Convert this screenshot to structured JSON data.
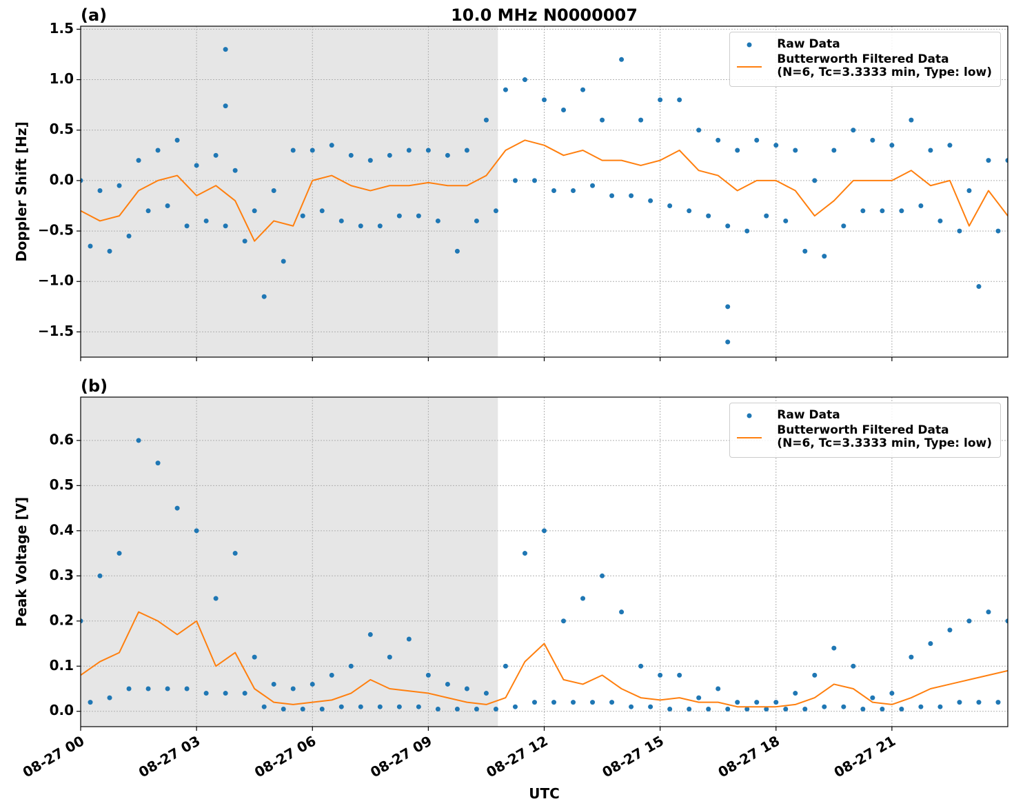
{
  "chart_data": [
    {
      "type": "scatter-line",
      "title": "10.0 MHz N0000007",
      "panel_label": "(a)",
      "ylabel": "Doppler Shift [Hz]",
      "xlim": [
        0,
        24
      ],
      "xticks": [
        0,
        3,
        6,
        9,
        12,
        15,
        18,
        21
      ],
      "ylim": [
        -1.75,
        1.53
      ],
      "yticks": [
        {
          "value": -1.5,
          "label": "−1.5"
        },
        {
          "value": -1.0,
          "label": "−1.0"
        },
        {
          "value": -0.5,
          "label": "−0.5"
        },
        {
          "value": 0,
          "label": "0.0"
        },
        0.5,
        {
          "value": 1.0,
          "label": "1.0"
        },
        1.5
      ],
      "grid": true,
      "legend": "upper right",
      "shaded_span": [
        0,
        10.8
      ],
      "series": [
        {
          "name": "Raw Data",
          "kind": "scatter",
          "color": "#1f77b4",
          "x": [
            0,
            0.25,
            0.5,
            0.75,
            1,
            1.25,
            1.5,
            1.75,
            2,
            2.25,
            2.5,
            2.75,
            3,
            3.25,
            3.5,
            3.75,
            4,
            4.25,
            4.5,
            4.75,
            5,
            5.25,
            5.5,
            5.75,
            6,
            6.25,
            6.5,
            6.75,
            7,
            7.25,
            7.5,
            7.75,
            8,
            8.25,
            8.5,
            8.75,
            9,
            9.25,
            9.5,
            9.75,
            10,
            10.25,
            10.5,
            10.75,
            11,
            11.25,
            11.5,
            11.75,
            12,
            12.25,
            12.5,
            12.75,
            13,
            13.25,
            13.5,
            13.75,
            14,
            14.25,
            14.5,
            14.75,
            15,
            15.25,
            15.5,
            15.75,
            16,
            16.25,
            16.5,
            16.75,
            17,
            17.25,
            17.5,
            17.75,
            18,
            18.25,
            18.5,
            18.75,
            19,
            19.25,
            19.5,
            19.75,
            20,
            20.25,
            20.5,
            20.75,
            21,
            21.25,
            21.5,
            21.75,
            22,
            22.25,
            22.5,
            22.75,
            23,
            23.25,
            23.5,
            23.75,
            24,
            3.75,
            3.75,
            16.75,
            16.75
          ],
          "values": [
            0.0,
            -0.65,
            -0.1,
            -0.7,
            -0.05,
            -0.55,
            0.2,
            -0.3,
            0.3,
            -0.25,
            0.4,
            -0.45,
            0.15,
            -0.4,
            0.25,
            -0.45,
            0.1,
            -0.6,
            -0.3,
            -1.15,
            -0.1,
            -0.8,
            0.3,
            -0.35,
            0.3,
            -0.3,
            0.35,
            -0.4,
            0.25,
            -0.45,
            0.2,
            -0.45,
            0.25,
            -0.35,
            0.3,
            -0.35,
            0.3,
            -0.4,
            0.25,
            -0.7,
            0.3,
            -0.4,
            0.6,
            -0.3,
            0.9,
            0.0,
            1.0,
            0.0,
            0.8,
            -0.1,
            0.7,
            -0.1,
            0.9,
            -0.05,
            0.6,
            -0.15,
            1.2,
            -0.15,
            0.6,
            -0.2,
            0.8,
            -0.25,
            0.8,
            -0.3,
            0.5,
            -0.35,
            0.4,
            -0.45,
            0.3,
            -0.5,
            0.4,
            -0.35,
            0.35,
            -0.4,
            0.3,
            -0.7,
            0.0,
            -0.75,
            0.3,
            -0.45,
            0.5,
            -0.3,
            0.4,
            -0.3,
            0.35,
            -0.3,
            0.6,
            -0.25,
            0.3,
            -0.4,
            0.35,
            -0.5,
            -0.1,
            -1.05,
            0.2,
            -0.5,
            0.2,
            1.3,
            0.74,
            -1.6,
            -1.25
          ]
        },
        {
          "name": "Butterworth Filtered Data\n(N=6, Tc=3.3333 min, Type: low)",
          "kind": "line",
          "color": "#ff7f0e",
          "x": [
            0,
            0.5,
            1,
            1.5,
            2,
            2.5,
            3,
            3.5,
            4,
            4.5,
            5,
            5.5,
            6,
            6.5,
            7,
            7.5,
            8,
            8.5,
            9,
            9.5,
            10,
            10.5,
            11,
            11.5,
            12,
            12.5,
            13,
            13.5,
            14,
            14.5,
            15,
            15.5,
            16,
            16.5,
            17,
            17.5,
            18,
            18.5,
            19,
            19.5,
            20,
            20.5,
            21,
            21.5,
            22,
            22.5,
            23,
            23.5,
            24
          ],
          "values": [
            -0.3,
            -0.4,
            -0.35,
            -0.1,
            0.0,
            0.05,
            -0.15,
            -0.05,
            -0.2,
            -0.6,
            -0.4,
            -0.45,
            0.0,
            0.05,
            -0.05,
            -0.1,
            -0.05,
            -0.05,
            -0.02,
            -0.05,
            -0.05,
            0.05,
            0.3,
            0.4,
            0.35,
            0.25,
            0.3,
            0.2,
            0.2,
            0.15,
            0.2,
            0.3,
            0.1,
            0.05,
            -0.1,
            0.0,
            0.0,
            -0.1,
            -0.35,
            -0.2,
            0.0,
            0.0,
            0.0,
            0.1,
            -0.05,
            0.0,
            -0.45,
            -0.1,
            -0.35
          ]
        }
      ]
    },
    {
      "type": "scatter-line",
      "panel_label": "(b)",
      "ylabel": "Peak Voltage [V]",
      "xlabel": "UTC",
      "xlim": [
        0,
        24
      ],
      "xticks": [
        {
          "value": 0,
          "label": "08-27 00"
        },
        {
          "value": 3,
          "label": "08-27 03"
        },
        {
          "value": 6,
          "label": "08-27 06"
        },
        {
          "value": 9,
          "label": "08-27 09"
        },
        {
          "value": 12,
          "label": "08-27 12"
        },
        {
          "value": 15,
          "label": "08-27 15"
        },
        {
          "value": 18,
          "label": "08-27 18"
        },
        {
          "value": 21,
          "label": "08-27 21"
        }
      ],
      "ylim": [
        -0.034,
        0.696
      ],
      "yticks": [
        {
          "value": 0,
          "label": "0.0"
        },
        0.1,
        0.2,
        0.3,
        0.4,
        0.5,
        0.6
      ],
      "grid": true,
      "legend": "upper right",
      "shaded_span": [
        0,
        10.8
      ],
      "series": [
        {
          "name": "Raw Data",
          "kind": "scatter",
          "color": "#1f77b4",
          "x": [
            0,
            0.25,
            0.5,
            0.75,
            1,
            1.25,
            1.5,
            1.75,
            2,
            2.25,
            2.5,
            2.75,
            3,
            3.25,
            3.5,
            3.75,
            4,
            4.25,
            4.5,
            4.75,
            5,
            5.25,
            5.5,
            5.75,
            6,
            6.25,
            6.5,
            6.75,
            7,
            7.25,
            7.5,
            7.75,
            8,
            8.25,
            8.5,
            8.75,
            9,
            9.25,
            9.5,
            9.75,
            10,
            10.25,
            10.5,
            10.75,
            11,
            11.25,
            11.5,
            11.75,
            12,
            12.25,
            12.5,
            12.75,
            13,
            13.25,
            13.5,
            13.75,
            14,
            14.25,
            14.5,
            14.75,
            15,
            15.25,
            15.5,
            15.75,
            16,
            16.25,
            16.5,
            16.75,
            17,
            17.25,
            17.5,
            17.75,
            18,
            18.25,
            18.5,
            18.75,
            19,
            19.25,
            19.5,
            19.75,
            20,
            20.25,
            20.5,
            20.75,
            21,
            21.25,
            21.5,
            21.75,
            22,
            22.25,
            22.5,
            22.75,
            23,
            23.25,
            23.5,
            23.75,
            24
          ],
          "values": [
            0.2,
            0.02,
            0.3,
            0.03,
            0.35,
            0.05,
            0.6,
            0.05,
            0.55,
            0.05,
            0.45,
            0.05,
            0.4,
            0.04,
            0.25,
            0.04,
            0.35,
            0.04,
            0.12,
            0.01,
            0.06,
            0.005,
            0.05,
            0.005,
            0.06,
            0.005,
            0.08,
            0.01,
            0.1,
            0.01,
            0.17,
            0.01,
            0.12,
            0.01,
            0.16,
            0.01,
            0.08,
            0.005,
            0.06,
            0.005,
            0.05,
            0.005,
            0.04,
            0.005,
            0.1,
            0.01,
            0.35,
            0.02,
            0.4,
            0.02,
            0.2,
            0.02,
            0.25,
            0.02,
            0.3,
            0.02,
            0.22,
            0.01,
            0.1,
            0.01,
            0.08,
            0.005,
            0.08,
            0.005,
            0.03,
            0.005,
            0.05,
            0.005,
            0.02,
            0.005,
            0.02,
            0.005,
            0.02,
            0.005,
            0.04,
            0.005,
            0.08,
            0.01,
            0.14,
            0.01,
            0.1,
            0.005,
            0.03,
            0.005,
            0.04,
            0.005,
            0.12,
            0.01,
            0.15,
            0.01,
            0.18,
            0.02,
            0.2,
            0.02,
            0.22,
            0.02,
            0.2
          ]
        },
        {
          "name": "Butterworth Filtered Data\n(N=6, Tc=3.3333 min, Type: low)",
          "kind": "line",
          "color": "#ff7f0e",
          "x": [
            0,
            0.5,
            1,
            1.5,
            2,
            2.5,
            3,
            3.5,
            4,
            4.5,
            5,
            5.5,
            6,
            6.5,
            7,
            7.5,
            8,
            8.5,
            9,
            9.5,
            10,
            10.5,
            11,
            11.5,
            12,
            12.5,
            13,
            13.5,
            14,
            14.5,
            15,
            15.5,
            16,
            16.5,
            17,
            17.5,
            18,
            18.5,
            19,
            19.5,
            20,
            20.5,
            21,
            21.5,
            22,
            22.5,
            23,
            23.5,
            24
          ],
          "values": [
            0.08,
            0.11,
            0.13,
            0.22,
            0.2,
            0.17,
            0.2,
            0.1,
            0.13,
            0.05,
            0.02,
            0.015,
            0.02,
            0.025,
            0.04,
            0.07,
            0.05,
            0.045,
            0.04,
            0.03,
            0.02,
            0.015,
            0.03,
            0.11,
            0.15,
            0.07,
            0.06,
            0.08,
            0.05,
            0.03,
            0.025,
            0.03,
            0.02,
            0.02,
            0.01,
            0.01,
            0.01,
            0.015,
            0.03,
            0.06,
            0.05,
            0.02,
            0.015,
            0.03,
            0.05,
            0.06,
            0.07,
            0.08,
            0.09
          ]
        }
      ]
    }
  ]
}
